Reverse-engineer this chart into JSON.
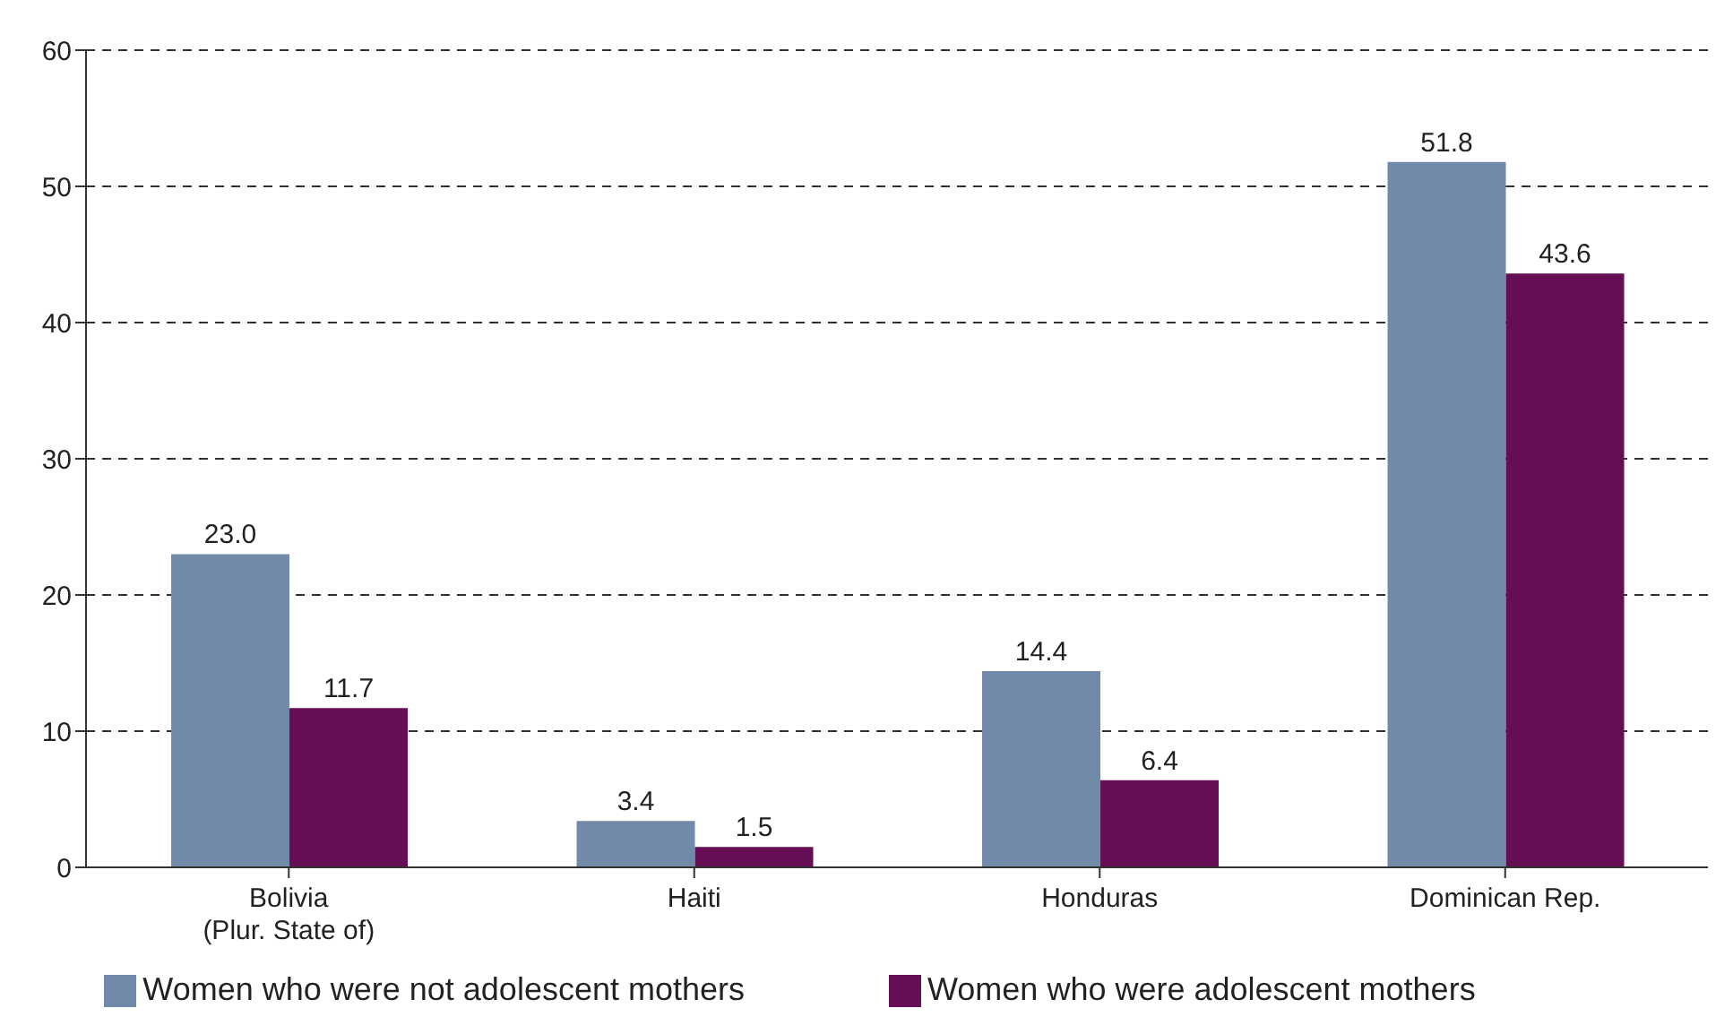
{
  "chart_data": {
    "type": "bar",
    "categories": [
      "Bolivia\n(Plur. State of)",
      "Haiti",
      "Honduras",
      "Dominican Rep."
    ],
    "series": [
      {
        "name": "Women who were not adolescent mothers",
        "color": "#728aa9",
        "values": [
          23.0,
          3.4,
          14.4,
          51.8
        ],
        "value_labels": [
          "23.0",
          "3.4",
          "14.4",
          "51.8"
        ]
      },
      {
        "name": "Women who were adolescent mothers",
        "color": "#660e55",
        "values": [
          11.7,
          1.5,
          6.4,
          43.6
        ],
        "value_labels": [
          "11.7",
          "1.5",
          "6.4",
          "43.6"
        ]
      }
    ],
    "ylim": [
      0,
      60
    ],
    "yticks": [
      0,
      10,
      20,
      30,
      40,
      50,
      60
    ],
    "grid": "y",
    "legend": "bottom"
  }
}
